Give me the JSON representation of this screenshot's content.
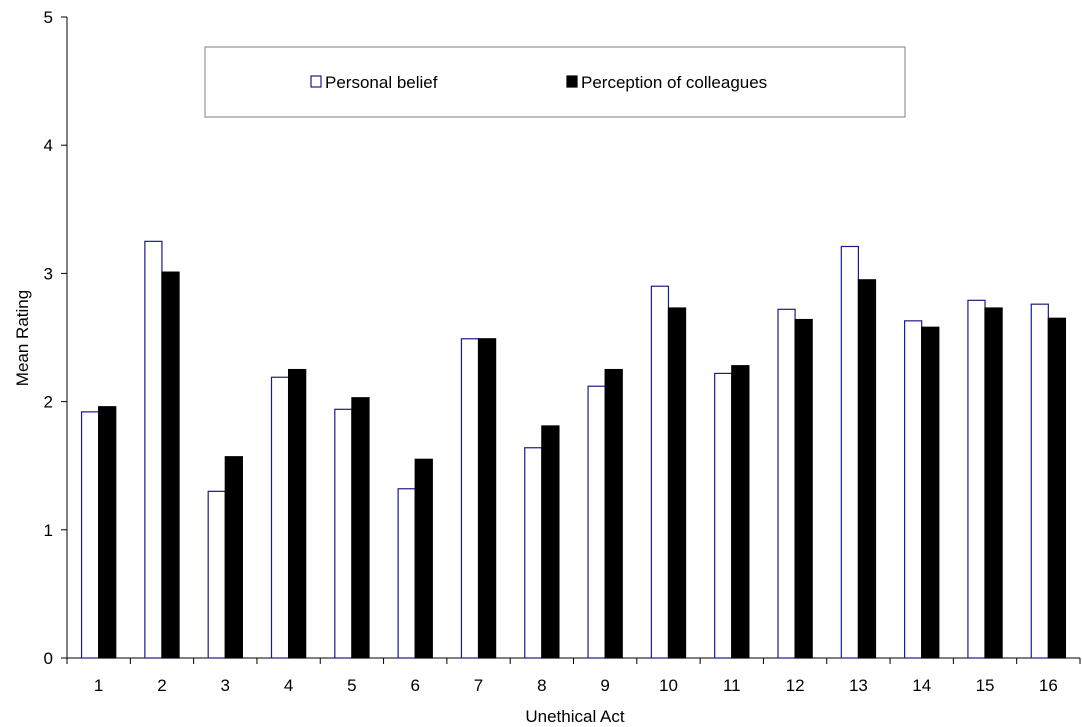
{
  "chart_data": {
    "type": "bar",
    "title": "",
    "xlabel": "Unethical Act",
    "ylabel": "Mean Rating",
    "ylim": [
      0,
      5
    ],
    "yticks": [
      "0",
      "1",
      "2",
      "3",
      "4",
      "5"
    ],
    "categories": [
      "1",
      "2",
      "3",
      "4",
      "5",
      "6",
      "7",
      "8",
      "9",
      "10",
      "11",
      "12",
      "13",
      "14",
      "15",
      "16"
    ],
    "series": [
      {
        "name": "Personal belief",
        "fill": "#ffffff",
        "stroke": "#1a1a8c",
        "values": [
          1.92,
          3.25,
          1.3,
          2.19,
          1.94,
          1.32,
          2.49,
          1.64,
          2.12,
          2.9,
          2.22,
          2.72,
          3.21,
          2.63,
          2.79,
          2.76
        ]
      },
      {
        "name": "Perception of colleagues",
        "fill": "#000000",
        "stroke": "#000000",
        "values": [
          1.96,
          3.01,
          1.57,
          2.25,
          2.03,
          1.55,
          2.49,
          1.81,
          2.25,
          2.73,
          2.28,
          2.64,
          2.95,
          2.58,
          2.73,
          2.65
        ]
      }
    ],
    "grid": false,
    "legend_position": "top"
  }
}
